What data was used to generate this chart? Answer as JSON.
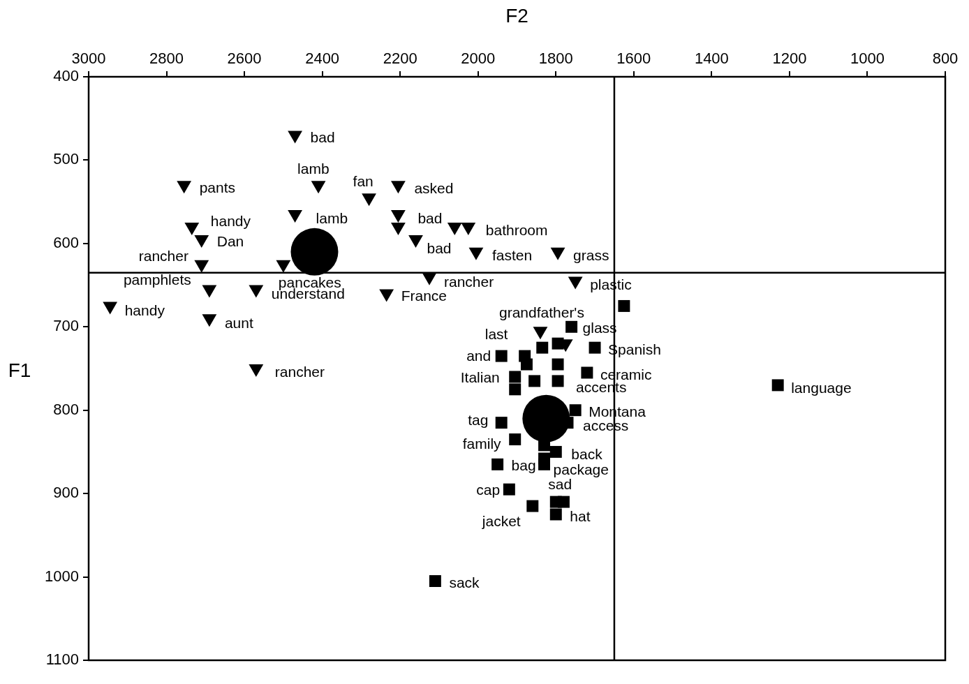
{
  "chart_data": {
    "type": "scatter",
    "xlabel": "F2",
    "ylabel": "F1",
    "xlim": [
      3000,
      800
    ],
    "xticks": [
      3000,
      2800,
      2600,
      2400,
      2200,
      2000,
      1800,
      1600,
      1400,
      1200,
      1000,
      800
    ],
    "ylim": [
      1100,
      400
    ],
    "yticks": [
      400,
      500,
      600,
      700,
      800,
      900,
      1000,
      1100
    ],
    "grid": false,
    "legend": false,
    "series": [
      {
        "marker": "triangle",
        "color": "#000000",
        "x": [
          2470,
          2755,
          2410,
          2280,
          2205,
          2470,
          2205,
          2735,
          2205,
          2060,
          2025,
          2710,
          2160,
          2005,
          1795,
          2710,
          2500,
          2125,
          1750,
          2690,
          2570,
          2235,
          2945,
          2690,
          2570,
          1840,
          1775
        ],
        "values": [
          470,
          530,
          530,
          545,
          530,
          565,
          565,
          580,
          580,
          580,
          580,
          595,
          595,
          610,
          610,
          625,
          625,
          640,
          645,
          655,
          655,
          660,
          675,
          690,
          750,
          705,
          720
        ]
      },
      {
        "marker": "square",
        "color": "#000000",
        "x": [
          1625,
          1760,
          1700,
          1940,
          1720,
          1230,
          1905,
          1875,
          1835,
          1795,
          1795,
          1795,
          1880,
          1855,
          1905,
          1750,
          1770,
          1940,
          1905,
          1800,
          1830,
          1830,
          1830,
          1950,
          1920,
          1860,
          1800,
          1780,
          1800,
          2110
        ],
        "values": [
          675,
          700,
          725,
          735,
          755,
          770,
          760,
          745,
          725,
          720,
          745,
          765,
          735,
          765,
          775,
          800,
          815,
          815,
          835,
          850,
          842,
          858,
          865,
          865,
          895,
          915,
          910,
          910,
          925,
          1005
        ]
      },
      {
        "marker": "circle",
        "color": "#000000",
        "x": [
          2420,
          1825
        ],
        "values": [
          610,
          810
        ]
      }
    ],
    "ref_lines": [
      {
        "axis": "x",
        "value": 1650,
        "color": "#000000"
      },
      {
        "axis": "y",
        "value": 635,
        "color": "#000000"
      }
    ],
    "annotations": [
      {
        "text": "bad",
        "x": 2470,
        "y": 470
      },
      {
        "text": "pants",
        "x": 2755,
        "y": 530
      },
      {
        "text": "lamb",
        "x": 2410,
        "y": 530
      },
      {
        "text": "fan",
        "x": 2280,
        "y": 545
      },
      {
        "text": "asked",
        "x": 2205,
        "y": 530
      },
      {
        "text": "lamb",
        "x": 2470,
        "y": 565
      },
      {
        "text": "bad",
        "x": 2205,
        "y": 565
      },
      {
        "text": "handy",
        "x": 2735,
        "y": 580
      },
      {
        "text": "bathroom",
        "x": 2025,
        "y": 580
      },
      {
        "text": "Dan",
        "x": 2710,
        "y": 595
      },
      {
        "text": "bad",
        "x": 2160,
        "y": 595
      },
      {
        "text": "rancher",
        "x": 2710,
        "y": 625
      },
      {
        "text": "fasten",
        "x": 2005,
        "y": 610
      },
      {
        "text": "grass",
        "x": 1795,
        "y": 610
      },
      {
        "text": "pamphlets",
        "x": 2690,
        "y": 655
      },
      {
        "text": "pancakes",
        "x": 2500,
        "y": 625
      },
      {
        "text": "rancher",
        "x": 2125,
        "y": 640
      },
      {
        "text": "plastic",
        "x": 1750,
        "y": 645
      },
      {
        "text": "understand",
        "x": 2570,
        "y": 655
      },
      {
        "text": "France",
        "x": 2235,
        "y": 660
      },
      {
        "text": "handy",
        "x": 2945,
        "y": 675
      },
      {
        "text": "grandfather's",
        "x": 1840,
        "y": 705
      },
      {
        "text": "aunt",
        "x": 2690,
        "y": 690
      },
      {
        "text": "glass",
        "x": 1760,
        "y": 700
      },
      {
        "text": "last",
        "x": 1835,
        "y": 725
      },
      {
        "text": "Spanish",
        "x": 1700,
        "y": 725
      },
      {
        "text": "and",
        "x": 1940,
        "y": 735
      },
      {
        "text": "rancher",
        "x": 2570,
        "y": 750
      },
      {
        "text": "ceramic",
        "x": 1720,
        "y": 755
      },
      {
        "text": "Italian",
        "x": 1905,
        "y": 760
      },
      {
        "text": "language",
        "x": 1230,
        "y": 770
      },
      {
        "text": "accents",
        "x": 1795,
        "y": 765
      },
      {
        "text": "Montana",
        "x": 1750,
        "y": 800
      },
      {
        "text": "access",
        "x": 1770,
        "y": 815
      },
      {
        "text": "tag",
        "x": 1940,
        "y": 815
      },
      {
        "text": "family",
        "x": 1905,
        "y": 835
      },
      {
        "text": "back",
        "x": 1800,
        "y": 850
      },
      {
        "text": "bag",
        "x": 1950,
        "y": 865
      },
      {
        "text": "package",
        "x": 1830,
        "y": 865
      },
      {
        "text": "sad",
        "x": 1800,
        "y": 910
      },
      {
        "text": "cap",
        "x": 1920,
        "y": 895
      },
      {
        "text": "jacket",
        "x": 1860,
        "y": 915
      },
      {
        "text": "hat",
        "x": 1800,
        "y": 925
      },
      {
        "text": "sack",
        "x": 2110,
        "y": 1005
      }
    ]
  }
}
